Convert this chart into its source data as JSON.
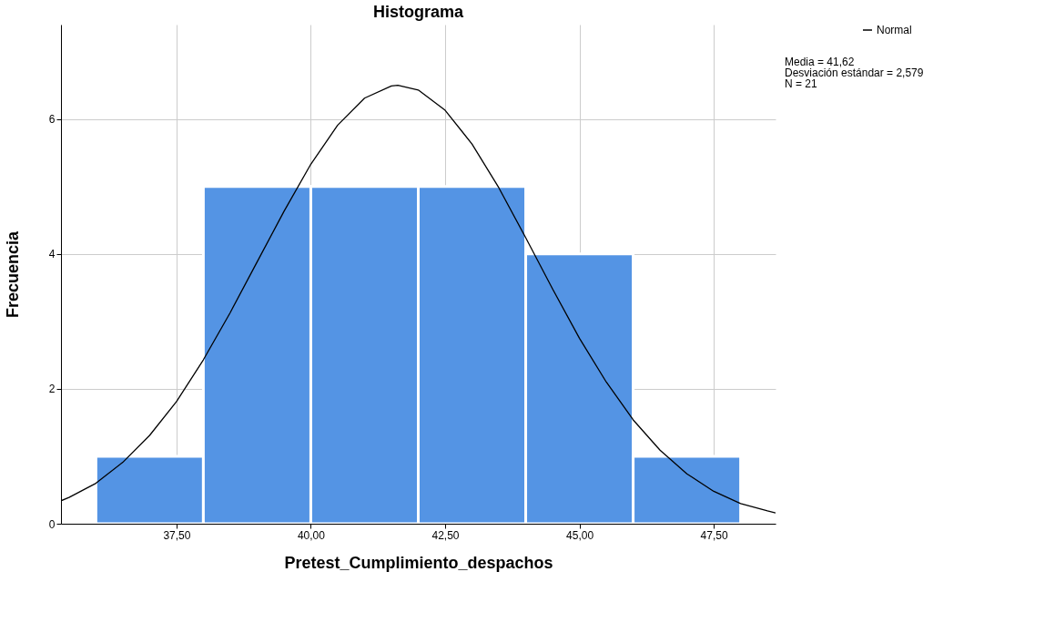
{
  "chart_data": {
    "type": "histogram",
    "title": "Histograma",
    "xlabel": "Pretest_Cumplimiento_despachos",
    "ylabel": "Frecuencia",
    "bins": [
      36,
      38,
      40,
      42,
      44,
      46,
      48
    ],
    "values": [
      1,
      5,
      5,
      5,
      4,
      1
    ],
    "color": "#5494e4",
    "series": [
      {
        "name": "Normal",
        "type": "line",
        "color": "#000000",
        "x": [
          35.35,
          35.5,
          36.0,
          36.5,
          37.0,
          37.5,
          38.0,
          38.5,
          39.0,
          39.5,
          40.0,
          40.5,
          41.0,
          41.5,
          41.62,
          42.0,
          42.5,
          43.0,
          43.5,
          44.0,
          44.5,
          45.0,
          45.5,
          46.0,
          46.5,
          47.0,
          47.5,
          48.0,
          48.5,
          48.65
        ],
        "values": [
          0.34,
          0.39,
          0.6,
          0.91,
          1.31,
          1.81,
          2.43,
          3.13,
          3.88,
          4.63,
          5.33,
          5.91,
          6.31,
          6.49,
          6.5,
          6.43,
          6.13,
          5.63,
          4.98,
          4.24,
          3.48,
          2.75,
          2.1,
          1.54,
          1.09,
          0.74,
          0.48,
          0.3,
          0.19,
          0.16
        ]
      }
    ],
    "xlim": [
      35.35,
      48.65
    ],
    "ylim": [
      0,
      7.4
    ],
    "xticks": [
      {
        "value": 37.5,
        "label": "37,50"
      },
      {
        "value": 40,
        "label": "40,00"
      },
      {
        "value": 42.5,
        "label": "42,50"
      },
      {
        "value": 45,
        "label": "45,00"
      },
      {
        "value": 47.5,
        "label": "47,50"
      }
    ],
    "yticks": [
      0,
      2,
      4,
      6
    ],
    "grid": true,
    "legend": "top right",
    "annotations": [
      "Media = 41,62",
      "Desviación estándar = 2,579",
      "N = 21"
    ]
  }
}
